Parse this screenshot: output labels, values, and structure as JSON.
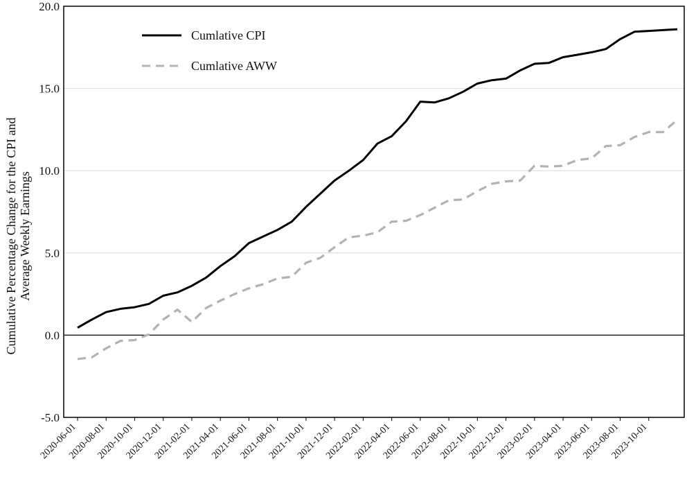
{
  "chart_data": {
    "type": "line",
    "title": "",
    "xlabel": "",
    "ylabel_lines": [
      "Cumulative Percentage Change for the CPI and",
      "Average Weekly Earnings"
    ],
    "ylim": [
      -5.0,
      20.0
    ],
    "yticks": [
      "20.0",
      "15.0",
      "10.0",
      "5.0",
      "0.0",
      "-5.0"
    ],
    "yticks_values": [
      20,
      15,
      10,
      5,
      0,
      -5
    ],
    "x_tick_labels": [
      "2020-06-01",
      "2020-08-01",
      "2020-10-01",
      "2020-12-01",
      "2021-02-01",
      "2021-04-01",
      "2021-06-01",
      "2021-08-01",
      "2021-10-01",
      "2021-12-01",
      "2022-02-01",
      "2022-04-01",
      "2022-06-01",
      "2022-08-01",
      "2022-10-01",
      "2022-12-01",
      "2023-02-01",
      "2023-04-01",
      "2023-06-01",
      "2023-08-01",
      "2023-10-01"
    ],
    "grid": true,
    "legend_position": "top-left",
    "x": [
      "2020-06-01",
      "2020-07-01",
      "2020-08-01",
      "2020-09-01",
      "2020-10-01",
      "2020-11-01",
      "2020-12-01",
      "2021-01-01",
      "2021-02-01",
      "2021-03-01",
      "2021-04-01",
      "2021-05-01",
      "2021-06-01",
      "2021-07-01",
      "2021-08-01",
      "2021-09-01",
      "2021-10-01",
      "2021-11-01",
      "2021-12-01",
      "2022-01-01",
      "2022-02-01",
      "2022-03-01",
      "2022-04-01",
      "2022-05-01",
      "2022-06-01",
      "2022-07-01",
      "2022-08-01",
      "2022-09-01",
      "2022-10-01",
      "2022-11-01",
      "2022-12-01",
      "2023-01-01",
      "2023-02-01",
      "2023-03-01",
      "2023-04-01",
      "2023-05-01",
      "2023-06-01",
      "2023-07-01",
      "2023-08-01",
      "2023-09-01",
      "2023-10-01",
      "2023-11-01",
      "2023-12-01"
    ],
    "series": [
      {
        "name": "Cumlative CPI",
        "color": "#000000",
        "dash": "solid",
        "values": [
          0.45,
          0.95,
          1.4,
          1.6,
          1.7,
          1.9,
          2.4,
          2.6,
          3.0,
          3.5,
          4.2,
          4.8,
          5.6,
          6.0,
          6.4,
          6.9,
          7.8,
          8.6,
          9.4,
          10.0,
          10.65,
          11.65,
          12.1,
          13.0,
          14.2,
          14.15,
          14.4,
          14.8,
          15.3,
          15.5,
          15.6,
          16.1,
          16.5,
          16.55,
          16.9,
          17.05,
          17.2,
          17.4,
          18.0,
          18.45,
          18.5,
          18.55,
          18.6
        ]
      },
      {
        "name": "Cumlative AWW",
        "color": "#b3b3b3",
        "dash": "dashed",
        "values": [
          -1.45,
          -1.35,
          -0.8,
          -0.35,
          -0.3,
          0.05,
          0.95,
          1.55,
          0.8,
          1.65,
          2.1,
          2.5,
          2.85,
          3.1,
          3.45,
          3.55,
          4.4,
          4.7,
          5.35,
          5.95,
          6.05,
          6.25,
          6.9,
          6.95,
          7.3,
          7.75,
          8.2,
          8.25,
          8.75,
          9.2,
          9.35,
          9.4,
          10.3,
          10.25,
          10.3,
          10.65,
          10.75,
          11.5,
          11.55,
          12.05,
          12.35,
          12.35,
          13.1
        ]
      }
    ]
  }
}
